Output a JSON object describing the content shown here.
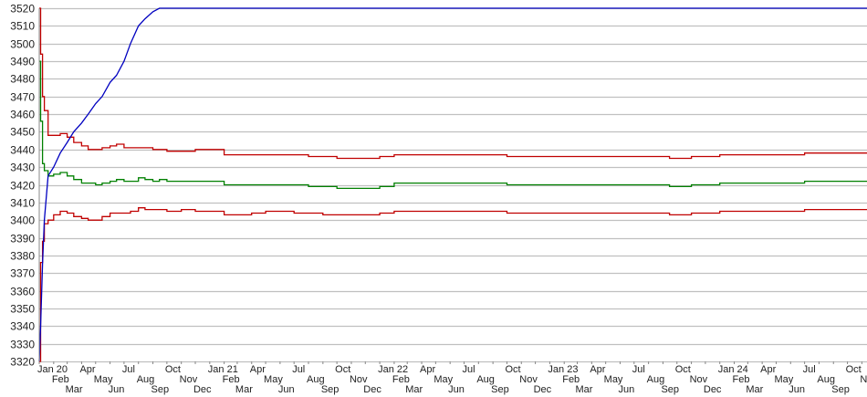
{
  "chart_data": {
    "type": "line",
    "title": "",
    "xlabel": "",
    "ylabel": "",
    "ylim": [
      3320,
      3520
    ],
    "yticks": [
      3320,
      3330,
      3340,
      3350,
      3360,
      3370,
      3380,
      3390,
      3400,
      3410,
      3420,
      3430,
      3440,
      3450,
      3460,
      3470,
      3480,
      3490,
      3500,
      3510,
      3520
    ],
    "xlim": [
      "2020-01-01",
      "2024-11-12"
    ],
    "xtick_labels": [
      "Jan 20",
      "Feb",
      "Mar",
      "Apr",
      "May",
      "Jun",
      "Jul",
      "Aug",
      "Sep",
      "Oct",
      "Nov",
      "Dec",
      "Jan 21",
      "Feb",
      "Mar",
      "Apr",
      "May",
      "Jun",
      "Jul",
      "Aug",
      "Sep",
      "Oct",
      "Nov",
      "Dec",
      "Jan 22",
      "Feb",
      "Mar",
      "Apr",
      "May",
      "Jun",
      "Jul",
      "Aug",
      "Sep",
      "Oct",
      "Nov",
      "Dec",
      "Jan 23",
      "Feb",
      "Mar",
      "Apr",
      "May",
      "Jun",
      "Jul",
      "Aug",
      "Sep",
      "Oct",
      "Nov",
      "Dec",
      "Jan 24",
      "Feb",
      "Mar",
      "Apr",
      "May",
      "Jun",
      "Jul",
      "Aug",
      "Sep",
      "Oct",
      "Nov"
    ],
    "grid": true,
    "step": true,
    "x": [
      "2020-01-01",
      "2020-01-04",
      "2020-01-08",
      "2020-01-12",
      "2020-01-20",
      "2020-02-01",
      "2020-02-15",
      "2020-03-01",
      "2020-03-15",
      "2020-04-01",
      "2020-04-15",
      "2020-05-01",
      "2020-05-15",
      "2020-06-01",
      "2020-06-15",
      "2020-07-01",
      "2020-07-15",
      "2020-08-01",
      "2020-08-15",
      "2020-09-01",
      "2020-09-15",
      "2020-10-01",
      "2020-11-01",
      "2020-12-01",
      "2021-01-01",
      "2021-02-01",
      "2021-03-01",
      "2021-04-01",
      "2021-05-01",
      "2021-06-01",
      "2021-07-01",
      "2021-08-01",
      "2021-09-01",
      "2021-10-01",
      "2021-11-01",
      "2021-12-01",
      "2022-01-01",
      "2022-02-01",
      "2022-04-01",
      "2022-06-01",
      "2022-08-01",
      "2022-10-01",
      "2022-12-01",
      "2023-02-01",
      "2023-04-01",
      "2023-06-01",
      "2023-08-01",
      "2023-09-15",
      "2023-11-01",
      "2024-01-01",
      "2024-03-01",
      "2024-05-01",
      "2024-07-01",
      "2024-09-01",
      "2024-11-12"
    ],
    "series": [
      {
        "color": "#c00000",
        "values": [
          3520,
          3494,
          3470,
          3462,
          3448,
          3448,
          3449,
          3447,
          3444,
          3442,
          3440,
          3440,
          3441,
          3442,
          3443,
          3441,
          3441,
          3441,
          3441,
          3440,
          3440,
          3439,
          3439,
          3440,
          3440,
          3437,
          3437,
          3437,
          3437,
          3437,
          3437,
          3436,
          3436,
          3435,
          3435,
          3435,
          3436,
          3437,
          3437,
          3437,
          3437,
          3436,
          3436,
          3436,
          3436,
          3436,
          3436,
          3435,
          3436,
          3437,
          3437,
          3437,
          3438,
          3438,
          3438
        ]
      },
      {
        "color": "#008000",
        "values": [
          3490,
          3456,
          3432,
          3428,
          3425,
          3426,
          3427,
          3425,
          3423,
          3421,
          3421,
          3420,
          3421,
          3422,
          3423,
          3422,
          3422,
          3424,
          3423,
          3422,
          3423,
          3422,
          3422,
          3422,
          3422,
          3420,
          3420,
          3420,
          3420,
          3420,
          3420,
          3419,
          3419,
          3418,
          3418,
          3418,
          3419,
          3421,
          3421,
          3421,
          3421,
          3420,
          3420,
          3420,
          3420,
          3420,
          3420,
          3419,
          3420,
          3421,
          3421,
          3421,
          3422,
          3422,
          3422
        ]
      },
      {
        "color": "#c00000",
        "values": [
          3320,
          3376,
          3388,
          3398,
          3400,
          3403,
          3405,
          3404,
          3402,
          3401,
          3400,
          3400,
          3402,
          3404,
          3404,
          3404,
          3405,
          3407,
          3406,
          3406,
          3406,
          3405,
          3406,
          3405,
          3405,
          3403,
          3403,
          3404,
          3405,
          3405,
          3404,
          3404,
          3403,
          3403,
          3403,
          3403,
          3404,
          3405,
          3405,
          3405,
          3405,
          3404,
          3404,
          3404,
          3404,
          3404,
          3404,
          3403,
          3404,
          3405,
          3405,
          3405,
          3406,
          3406,
          3406
        ]
      },
      {
        "color": "#0000c0",
        "values": [
          3320,
          3340,
          3375,
          3400,
          3425,
          3430,
          3438,
          3444,
          3450,
          3455,
          3460,
          3466,
          3470,
          3478,
          3482,
          3490,
          3500,
          3510,
          3514,
          3518,
          3520,
          3520,
          3520,
          3520,
          3520,
          3520,
          3520,
          3520,
          3520,
          3520,
          3520,
          3520,
          3520,
          3520,
          3520,
          3520,
          3520,
          3520,
          3520,
          3520,
          3520,
          3520,
          3520,
          3520,
          3520,
          3520,
          3520,
          3520,
          3520,
          3520,
          3520,
          3520,
          3520,
          3520,
          3520
        ]
      }
    ]
  }
}
